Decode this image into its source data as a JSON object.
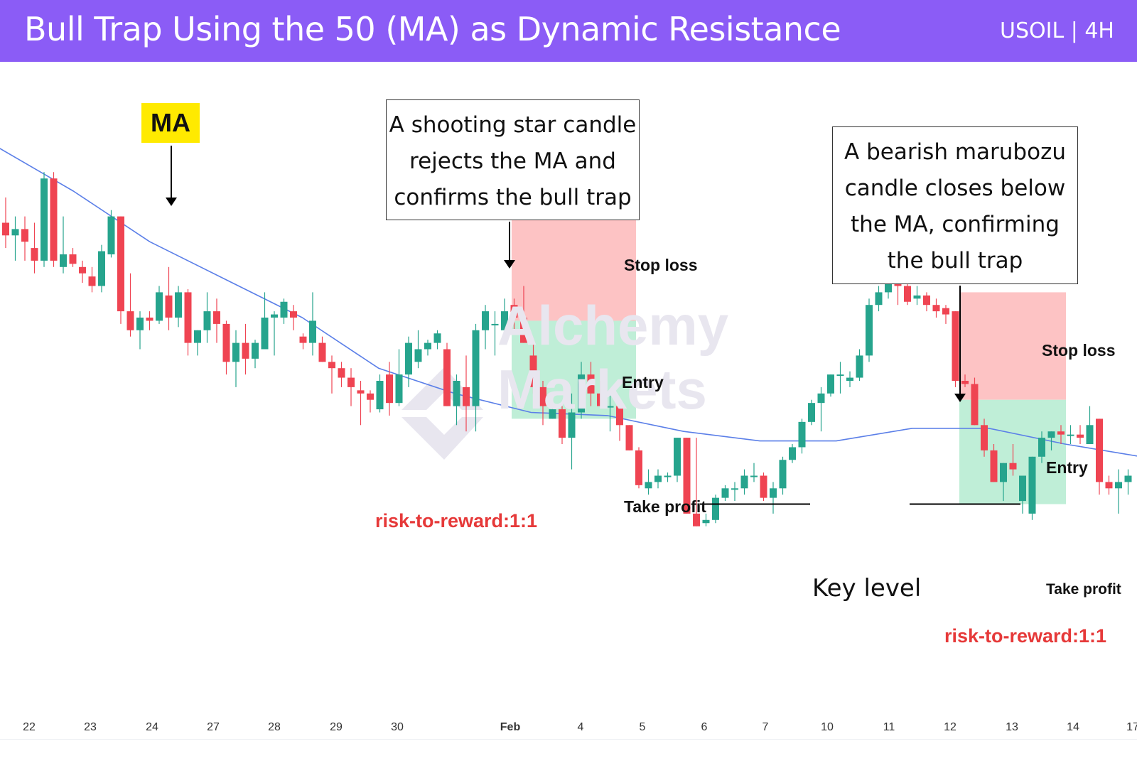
{
  "header": {
    "title": "Bull Trap Using the 50 (MA) as Dynamic Resistance",
    "symbol": "USOIL | 4H"
  },
  "watermark": {
    "line1": "Alchemy",
    "line2": "Markets"
  },
  "annotations": {
    "ma_label": "MA",
    "box1": [
      "A shooting star candle",
      "rejects the MA and",
      "confirms the bull trap"
    ],
    "box2": [
      "A bearish marubozu",
      "candle closes below",
      "the MA, confirming",
      "the bull trap"
    ],
    "key_level": "Key level",
    "trade1": {
      "stop": "Stop loss",
      "entry": "Entry",
      "tp": "Take profit",
      "rr": "risk-to-reward:1:1"
    },
    "trade2": {
      "stop": "Stop loss",
      "entry": "Entry",
      "tp": "Take profit",
      "rr": "risk-to-reward:1:1"
    }
  },
  "colors": {
    "up": "#26a48d",
    "down": "#ef4452",
    "ma": "#5b7fe8",
    "header": "#8b5cf6",
    "sl_zone": "#fdc3c4",
    "tp_zone": "#bfeed7"
  },
  "chart_data": {
    "type": "candlestick",
    "title": "Bull Trap Using the 50 (MA) as Dynamic Resistance",
    "x_tick_labels": [
      "22",
      "23",
      "24",
      "27",
      "28",
      "29",
      "30",
      "Feb",
      "4",
      "5",
      "6",
      "7",
      "10",
      "11",
      "12",
      "13",
      "14",
      "17"
    ],
    "price_range": [
      72.0,
      80.0
    ],
    "series": [
      {
        "name": "candles",
        "ohlc": [
          [
            78.5,
            78.9,
            78.1,
            78.3
          ],
          [
            78.3,
            78.6,
            77.9,
            78.4
          ],
          [
            78.4,
            78.6,
            77.9,
            78.2
          ],
          [
            78.1,
            78.5,
            77.7,
            77.9
          ],
          [
            77.9,
            79.3,
            77.8,
            79.2
          ],
          [
            79.2,
            79.3,
            77.8,
            77.9
          ],
          [
            77.8,
            78.6,
            77.7,
            78.0
          ],
          [
            78.0,
            78.1,
            77.8,
            77.85
          ],
          [
            77.8,
            77.9,
            77.55,
            77.7
          ],
          [
            77.65,
            77.8,
            77.4,
            77.5
          ],
          [
            77.5,
            78.15,
            77.4,
            78.05
          ],
          [
            78.0,
            78.7,
            77.95,
            78.6
          ],
          [
            78.6,
            78.6,
            76.9,
            77.1
          ],
          [
            77.1,
            77.7,
            76.7,
            76.8
          ],
          [
            76.8,
            77.1,
            76.5,
            77.0
          ],
          [
            77.0,
            77.1,
            76.8,
            76.95
          ],
          [
            76.95,
            77.5,
            76.9,
            77.4
          ],
          [
            77.35,
            77.8,
            76.8,
            77.0
          ],
          [
            77.0,
            77.5,
            76.85,
            77.4
          ],
          [
            77.4,
            77.45,
            76.4,
            76.6
          ],
          [
            76.6,
            76.8,
            76.4,
            76.8
          ],
          [
            76.8,
            77.4,
            76.6,
            77.1
          ],
          [
            77.1,
            77.3,
            76.6,
            76.9
          ],
          [
            76.9,
            76.95,
            76.1,
            76.3
          ],
          [
            76.3,
            76.8,
            75.9,
            76.6
          ],
          [
            76.6,
            76.9,
            76.1,
            76.35
          ],
          [
            76.35,
            76.65,
            76.2,
            76.6
          ],
          [
            76.5,
            77.4,
            76.5,
            77.0
          ],
          [
            77.0,
            77.1,
            76.4,
            77.05
          ],
          [
            77.0,
            77.3,
            76.9,
            77.25
          ],
          [
            77.1,
            77.2,
            76.8,
            77.0
          ],
          [
            76.7,
            76.75,
            76.5,
            76.6
          ],
          [
            76.6,
            77.4,
            76.4,
            76.95
          ],
          [
            76.6,
            76.7,
            76.3,
            76.3
          ],
          [
            76.3,
            76.4,
            75.8,
            76.2
          ],
          [
            76.2,
            76.3,
            75.9,
            76.05
          ],
          [
            76.05,
            76.2,
            75.6,
            75.9
          ],
          [
            75.85,
            76.0,
            75.3,
            75.8
          ],
          [
            75.8,
            75.85,
            75.5,
            75.7
          ],
          [
            75.55,
            76.1,
            75.5,
            76.0
          ],
          [
            76.1,
            76.3,
            75.45,
            75.65
          ],
          [
            75.65,
            76.5,
            75.6,
            76.1
          ],
          [
            76.1,
            76.7,
            75.9,
            76.6
          ],
          [
            76.3,
            76.8,
            76.2,
            76.5
          ],
          [
            76.5,
            76.65,
            76.4,
            76.6
          ],
          [
            76.6,
            76.8,
            76.5,
            76.75
          ],
          [
            76.5,
            76.6,
            75.6,
            75.6
          ],
          [
            75.6,
            76.1,
            75.3,
            76.0
          ],
          [
            75.9,
            76.4,
            75.2,
            75.6
          ],
          [
            75.6,
            76.9,
            75.2,
            76.8
          ],
          [
            76.8,
            77.2,
            76.5,
            77.1
          ],
          [
            76.9,
            77.1,
            76.4,
            76.9
          ],
          [
            76.8,
            77.3,
            76.8,
            77.1
          ],
          [
            77.2,
            77.3,
            76.8,
            77.0
          ],
          [
            77.0,
            77.5,
            76.6,
            76.6
          ],
          [
            76.4,
            76.6,
            75.8,
            75.9
          ],
          [
            75.9,
            76.0,
            75.3,
            75.6
          ],
          [
            75.4,
            75.7,
            75.4,
            75.55
          ],
          [
            75.55,
            75.6,
            75.0,
            75.1
          ],
          [
            75.1,
            75.8,
            74.6,
            75.5
          ],
          [
            75.5,
            76.3,
            75.4,
            76.1
          ],
          [
            76.1,
            76.3,
            75.6,
            75.8
          ],
          [
            75.8,
            76.0,
            75.6,
            75.6
          ],
          [
            75.6,
            75.8,
            75.2,
            75.6
          ],
          [
            75.6,
            75.6,
            75.05,
            75.3
          ],
          [
            75.3,
            75.3,
            74.9,
            74.9
          ],
          [
            74.9,
            74.95,
            74.3,
            74.35
          ],
          [
            74.3,
            74.6,
            74.2,
            74.4
          ],
          [
            74.4,
            74.6,
            74.3,
            74.5
          ],
          [
            74.5,
            74.55,
            74.4,
            74.5
          ],
          [
            74.5,
            75.1,
            74.4,
            75.1
          ],
          [
            75.1,
            75.1,
            73.9,
            73.9
          ],
          [
            73.9,
            75.1,
            73.7,
            73.7
          ],
          [
            73.75,
            73.9,
            73.7,
            73.8
          ],
          [
            73.8,
            74.2,
            73.75,
            74.15
          ],
          [
            74.15,
            74.35,
            74.1,
            74.3
          ],
          [
            74.3,
            74.4,
            74.1,
            74.3
          ],
          [
            74.3,
            74.6,
            74.2,
            74.5
          ],
          [
            74.5,
            74.7,
            74.4,
            74.5
          ],
          [
            74.5,
            74.55,
            74.1,
            74.15
          ],
          [
            74.15,
            74.4,
            73.9,
            74.3
          ],
          [
            74.3,
            74.8,
            74.2,
            74.75
          ],
          [
            74.75,
            75.0,
            74.7,
            74.95
          ],
          [
            74.95,
            75.4,
            74.85,
            75.35
          ],
          [
            75.35,
            75.7,
            75.3,
            75.65
          ],
          [
            75.65,
            75.9,
            75.2,
            75.8
          ],
          [
            75.8,
            76.1,
            75.75,
            76.1
          ],
          [
            76.1,
            76.3,
            75.8,
            76.1
          ],
          [
            76.0,
            76.15,
            75.9,
            76.05
          ],
          [
            76.05,
            76.5,
            76.0,
            76.4
          ],
          [
            76.4,
            77.3,
            76.3,
            77.2
          ],
          [
            77.2,
            77.5,
            77.1,
            77.4
          ],
          [
            77.4,
            77.7,
            77.3,
            77.6
          ],
          [
            77.6,
            77.6,
            77.2,
            77.5
          ],
          [
            77.5,
            77.55,
            77.2,
            77.25
          ],
          [
            77.3,
            77.5,
            77.2,
            77.35
          ],
          [
            77.35,
            77.4,
            77.1,
            77.2
          ],
          [
            77.2,
            77.3,
            77.0,
            77.1
          ],
          [
            77.15,
            77.2,
            76.9,
            77.05
          ],
          [
            77.1,
            77.1,
            75.9,
            76.0
          ],
          [
            76.0,
            76.1,
            75.9,
            75.95
          ],
          [
            75.95,
            76.05,
            75.3,
            75.3
          ],
          [
            75.3,
            75.4,
            74.8,
            74.9
          ],
          [
            74.9,
            75.0,
            74.4,
            74.4
          ],
          [
            74.4,
            74.7,
            74.1,
            74.7
          ],
          [
            74.7,
            75.0,
            74.5,
            74.6
          ],
          [
            74.1,
            74.5,
            73.9,
            74.5
          ],
          [
            73.9,
            74.8,
            73.8,
            74.8
          ],
          [
            74.8,
            75.2,
            74.7,
            75.1
          ],
          [
            75.1,
            75.2,
            74.9,
            75.2
          ],
          [
            75.2,
            75.3,
            75.0,
            75.15
          ],
          [
            75.15,
            75.3,
            75.0,
            75.15
          ],
          [
            75.15,
            75.3,
            75.0,
            75.1
          ],
          [
            75.0,
            75.6,
            75.0,
            75.3
          ],
          [
            75.4,
            75.4,
            74.2,
            74.4
          ],
          [
            74.4,
            74.5,
            74.2,
            74.3
          ],
          [
            74.3,
            74.6,
            73.9,
            74.4
          ],
          [
            74.4,
            74.6,
            74.2,
            74.5
          ]
        ]
      },
      {
        "name": "MA 50",
        "x_range": [
          0,
          117
        ],
        "values": [
          79.7,
          79.0,
          78.2,
          77.6,
          77.0,
          76.2,
          75.8,
          75.5,
          75.45,
          75.2,
          75.05,
          75.05,
          75.25,
          75.25,
          75.0,
          74.8
        ]
      }
    ],
    "trades": [
      {
        "stop_loss": 78.55,
        "entry": 76.95,
        "take_profit": 75.4,
        "risk_to_reward": "1:1"
      },
      {
        "stop_loss": 77.4,
        "entry": 75.7,
        "take_profit": 74.05,
        "risk_to_reward": "1:1"
      }
    ],
    "key_level": 74.05
  }
}
